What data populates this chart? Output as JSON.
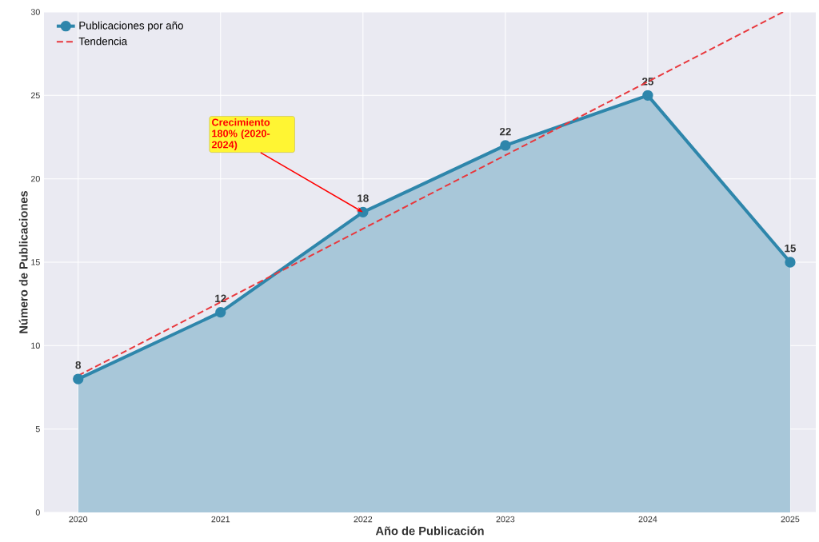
{
  "chart_data": {
    "type": "area",
    "xlabel": "Año de Publicación",
    "ylabel": "Número de Publicaciones",
    "xlim": [
      2019.76,
      2025.18
    ],
    "ylim": [
      0,
      30
    ],
    "xticks": [
      2020,
      2021,
      2022,
      2023,
      2024,
      2025
    ],
    "yticks": [
      0,
      5,
      10,
      15,
      20,
      25,
      30
    ],
    "grid": true,
    "legend": "top left",
    "marker": "circle",
    "series": [
      {
        "name": "Publicaciones por año",
        "color": "#2e86ab",
        "x": [
          2020,
          2021,
          2022,
          2023,
          2024,
          2025
        ],
        "values": [
          8,
          12,
          18,
          22,
          25,
          15
        ],
        "value_labels": [
          "8",
          "12",
          "18",
          "22",
          "25",
          "15"
        ]
      },
      {
        "name": "Tendencia",
        "type": "line",
        "line_style": "dashed",
        "marker": "none",
        "color": "#e8383d",
        "x": [
          2020,
          2024.95
        ],
        "values": [
          8.2,
          30
        ]
      }
    ],
    "annotations": [
      {
        "text": "Crecimiento 180% (2020-2024)",
        "x": 2022,
        "y": 18
      }
    ]
  }
}
